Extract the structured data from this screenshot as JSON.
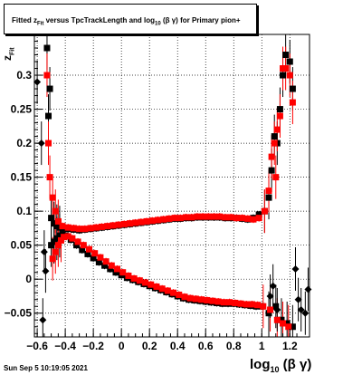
{
  "title": {
    "prefix": "Fitted  z",
    "z_sub": "Fit",
    "middle": "  versus TpcTrackLength and log",
    "log_sub": "10",
    "suffix": " (β γ) for Primary pion+"
  },
  "footer": {
    "timestamp": "Sun Sep  5 10:19:05 2021"
  },
  "axes": {
    "xlabel_main": "log",
    "xlabel_sub": "10",
    "xlabel_tail": " (β γ)",
    "ylabel_main": "z",
    "ylabel_sub": "Fit"
  },
  "chart_data": {
    "type": "scatter",
    "title": "Fitted z_Fit versus TpcTrackLength and log10(β γ) for Primary pion+",
    "xlabel": "log10(β γ)",
    "ylabel": "z_Fit",
    "xlim": [
      -0.62,
      1.34
    ],
    "ylim": [
      -0.085,
      0.36
    ],
    "x_ticks": [
      -0.6,
      -0.4,
      -0.2,
      0,
      0.2,
      0.4,
      0.6,
      0.8,
      1,
      1.2
    ],
    "x_tick_labels": [
      "−0.6",
      "−0.4",
      "−0.2",
      "0",
      "0.2",
      "0.4",
      "0.6",
      "0.8",
      "1",
      "1.2"
    ],
    "y_ticks": [
      -0.05,
      0,
      0.05,
      0.1,
      0.15,
      0.2,
      0.25,
      0.3
    ],
    "y_tick_labels": [
      "−0.05",
      "0",
      "0.05",
      "0.1",
      "0.15",
      "0.2",
      "0.25",
      "0.3"
    ],
    "grid": true,
    "series": [
      {
        "color": "#000000",
        "marker": "square",
        "points": [
          [
            -0.53,
            0.34
          ],
          [
            -0.52,
            0.24
          ],
          [
            -0.51,
            0.28
          ],
          [
            -0.5,
            0.09
          ],
          [
            -0.48,
            0.082
          ],
          [
            -0.46,
            0.078
          ],
          [
            -0.44,
            0.076
          ],
          [
            -0.42,
            0.075
          ],
          [
            -0.38,
            0.074
          ],
          [
            -0.34,
            0.073
          ],
          [
            -0.3,
            0.072
          ],
          [
            -0.26,
            0.073
          ],
          [
            -0.22,
            0.074
          ],
          [
            -0.18,
            0.075
          ],
          [
            -0.14,
            0.076
          ],
          [
            -0.1,
            0.077
          ],
          [
            -0.06,
            0.078
          ],
          [
            -0.02,
            0.079
          ],
          [
            0.02,
            0.08
          ],
          [
            0.06,
            0.081
          ],
          [
            0.1,
            0.082
          ],
          [
            0.14,
            0.083
          ],
          [
            0.18,
            0.084
          ],
          [
            0.22,
            0.085
          ],
          [
            0.26,
            0.086
          ],
          [
            0.3,
            0.087
          ],
          [
            0.34,
            0.088
          ],
          [
            0.38,
            0.089
          ],
          [
            0.42,
            0.089
          ],
          [
            0.46,
            0.09
          ],
          [
            0.5,
            0.09
          ],
          [
            0.54,
            0.091
          ],
          [
            0.58,
            0.091
          ],
          [
            0.62,
            0.091
          ],
          [
            0.66,
            0.091
          ],
          [
            0.7,
            0.091
          ],
          [
            0.74,
            0.09
          ],
          [
            0.78,
            0.09
          ],
          [
            0.82,
            0.09
          ],
          [
            0.86,
            0.089
          ],
          [
            0.9,
            0.088
          ],
          [
            0.94,
            0.09
          ],
          [
            0.98,
            0.095
          ],
          [
            1.02,
            0.1
          ],
          [
            1.05,
            0.12
          ],
          [
            1.07,
            0.16
          ],
          [
            1.09,
            0.21
          ],
          [
            1.11,
            0.2
          ],
          [
            1.13,
            0.25
          ],
          [
            1.15,
            0.3
          ],
          [
            1.17,
            0.33
          ],
          [
            1.2,
            0.32
          ],
          [
            1.22,
            0.28
          ],
          [
            -0.5,
            0.05
          ],
          [
            -0.48,
            0.055
          ],
          [
            -0.46,
            0.06
          ],
          [
            -0.44,
            0.064
          ],
          [
            -0.42,
            0.066
          ],
          [
            -0.4,
            0.064
          ],
          [
            -0.36,
            0.058
          ],
          [
            -0.32,
            0.05
          ],
          [
            -0.28,
            0.043
          ],
          [
            -0.24,
            0.037
          ],
          [
            -0.2,
            0.031
          ],
          [
            -0.16,
            0.025
          ],
          [
            -0.12,
            0.02
          ],
          [
            -0.08,
            0.015
          ],
          [
            -0.04,
            0.01
          ],
          [
            0,
            0.006
          ],
          [
            0.04,
            0.002
          ],
          [
            0.08,
            -0.001
          ],
          [
            0.12,
            -0.004
          ],
          [
            0.16,
            -0.007
          ],
          [
            0.2,
            -0.01
          ],
          [
            0.24,
            -0.013
          ],
          [
            0.28,
            -0.016
          ],
          [
            0.32,
            -0.019
          ],
          [
            0.36,
            -0.022
          ],
          [
            0.4,
            -0.025
          ],
          [
            0.44,
            -0.028
          ],
          [
            0.48,
            -0.03
          ],
          [
            0.52,
            -0.031
          ],
          [
            0.56,
            -0.032
          ],
          [
            0.6,
            -0.033
          ],
          [
            0.64,
            -0.034
          ],
          [
            0.68,
            -0.035
          ],
          [
            0.72,
            -0.036
          ],
          [
            0.76,
            -0.036
          ],
          [
            0.8,
            -0.036
          ],
          [
            0.84,
            -0.037
          ],
          [
            0.88,
            -0.038
          ],
          [
            0.92,
            -0.039
          ],
          [
            0.96,
            -0.04
          ],
          [
            1,
            -0.04
          ],
          [
            1.05,
            -0.05
          ],
          [
            1.1,
            -0.04
          ],
          [
            1.14,
            -0.06
          ],
          [
            1.18,
            -0.065
          ],
          [
            1.22,
            -0.07
          ]
        ]
      },
      {
        "color": "#ff0000",
        "marker": "square",
        "points": [
          [
            -0.53,
            0.3
          ],
          [
            -0.52,
            0.2
          ],
          [
            -0.51,
            0.15
          ],
          [
            -0.49,
            0.12
          ],
          [
            -0.47,
            0.1
          ],
          [
            -0.45,
            0.085
          ],
          [
            -0.42,
            0.078
          ],
          [
            -0.38,
            0.076
          ],
          [
            -0.34,
            0.075
          ],
          [
            -0.3,
            0.074
          ],
          [
            -0.26,
            0.074
          ],
          [
            -0.22,
            0.075
          ],
          [
            -0.18,
            0.076
          ],
          [
            -0.14,
            0.077
          ],
          [
            -0.1,
            0.078
          ],
          [
            -0.06,
            0.079
          ],
          [
            -0.02,
            0.08
          ],
          [
            0.02,
            0.081
          ],
          [
            0.06,
            0.082
          ],
          [
            0.1,
            0.083
          ],
          [
            0.14,
            0.084
          ],
          [
            0.18,
            0.085
          ],
          [
            0.22,
            0.086
          ],
          [
            0.26,
            0.087
          ],
          [
            0.3,
            0.088
          ],
          [
            0.34,
            0.089
          ],
          [
            0.38,
            0.09
          ],
          [
            0.42,
            0.09
          ],
          [
            0.46,
            0.091
          ],
          [
            0.5,
            0.091
          ],
          [
            0.54,
            0.092
          ],
          [
            0.58,
            0.092
          ],
          [
            0.62,
            0.092
          ],
          [
            0.66,
            0.092
          ],
          [
            0.7,
            0.092
          ],
          [
            0.74,
            0.091
          ],
          [
            0.78,
            0.091
          ],
          [
            0.82,
            0.09
          ],
          [
            0.86,
            0.09
          ],
          [
            0.9,
            0.089
          ],
          [
            0.94,
            0.088
          ],
          [
            0.98,
            0.09
          ],
          [
            1.02,
            0.1
          ],
          [
            1.05,
            0.13
          ],
          [
            1.07,
            0.18
          ],
          [
            1.09,
            0.2
          ],
          [
            1.1,
            0.15
          ],
          [
            1.11,
            0.22
          ],
          [
            1.13,
            0.24
          ],
          [
            1.15,
            0.31
          ],
          [
            1.17,
            0.31
          ],
          [
            1.2,
            0.3
          ],
          [
            1.22,
            0.26
          ],
          [
            -0.49,
            0.03
          ],
          [
            -0.47,
            0.04
          ],
          [
            -0.45,
            0.05
          ],
          [
            -0.43,
            0.057
          ],
          [
            -0.41,
            0.062
          ],
          [
            -0.38,
            0.063
          ],
          [
            -0.35,
            0.06
          ],
          [
            -0.31,
            0.055
          ],
          [
            -0.27,
            0.05
          ],
          [
            -0.23,
            0.044
          ],
          [
            -0.19,
            0.038
          ],
          [
            -0.15,
            0.032
          ],
          [
            -0.11,
            0.026
          ],
          [
            -0.07,
            0.02
          ],
          [
            -0.03,
            0.015
          ],
          [
            0.01,
            0.01
          ],
          [
            0.05,
            0.005
          ],
          [
            0.09,
            0.001
          ],
          [
            0.13,
            -0.002
          ],
          [
            0.17,
            -0.005
          ],
          [
            0.21,
            -0.008
          ],
          [
            0.25,
            -0.011
          ],
          [
            0.29,
            -0.014
          ],
          [
            0.33,
            -0.017
          ],
          [
            0.37,
            -0.02
          ],
          [
            0.41,
            -0.023
          ],
          [
            0.45,
            -0.026
          ],
          [
            0.49,
            -0.028
          ],
          [
            0.53,
            -0.029
          ],
          [
            0.57,
            -0.03
          ],
          [
            0.61,
            -0.031
          ],
          [
            0.65,
            -0.032
          ],
          [
            0.69,
            -0.033
          ],
          [
            0.73,
            -0.034
          ],
          [
            0.77,
            -0.034
          ],
          [
            0.81,
            -0.035
          ],
          [
            0.85,
            -0.036
          ],
          [
            0.89,
            -0.037
          ],
          [
            0.93,
            -0.037
          ],
          [
            0.97,
            -0.038
          ],
          [
            1.01,
            -0.04
          ],
          [
            1.06,
            -0.045
          ],
          [
            1.11,
            -0.06
          ],
          [
            1.15,
            -0.065
          ],
          [
            1.19,
            -0.07
          ]
        ]
      },
      {
        "color": "#000000",
        "marker": "diamond",
        "points": [
          [
            -0.6,
            0.29
          ],
          [
            -0.57,
            0.2
          ],
          [
            -0.55,
            0.04
          ],
          [
            -0.54,
            0.012
          ],
          [
            -0.56,
            -0.06
          ],
          [
            1.06,
            -0.025
          ],
          [
            1.08,
            -0.01
          ],
          [
            1.11,
            -0.045
          ],
          [
            1.24,
            0.015
          ],
          [
            1.26,
            -0.03
          ],
          [
            1.28,
            -0.045
          ],
          [
            1.31,
            -0.05
          ],
          [
            1.33,
            -0.015
          ]
        ]
      }
    ]
  }
}
